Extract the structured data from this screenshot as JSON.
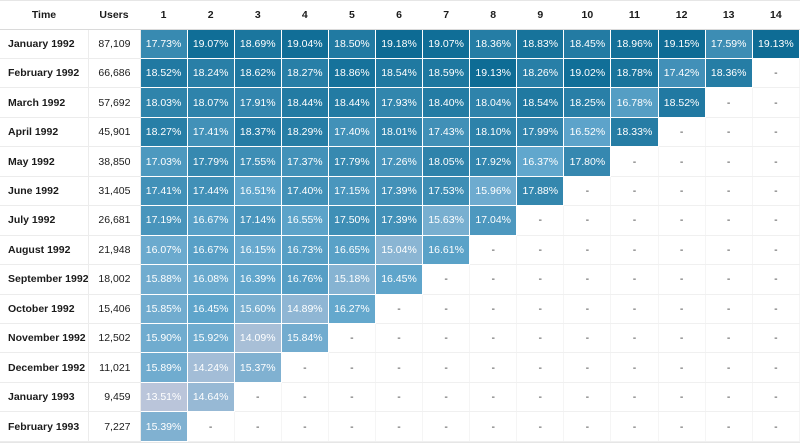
{
  "table": {
    "time_header": "Time",
    "users_header": "Users",
    "period_headers": [
      "1",
      "2",
      "3",
      "4",
      "5",
      "6",
      "7",
      "8",
      "9",
      "10",
      "11",
      "12",
      "13",
      "14"
    ],
    "empty_cell": "-"
  },
  "chart_data": {
    "type": "heatmap",
    "columns": [
      "1",
      "2",
      "3",
      "4",
      "5",
      "6",
      "7",
      "8",
      "9",
      "10",
      "11",
      "12",
      "13",
      "14"
    ],
    "value_format": "percent",
    "legend_position": "none",
    "color_scale": {
      "min": 13.5,
      "max": 19.2,
      "stops": [
        "#bac5da",
        "#62a7cd",
        "#0c6b94"
      ]
    },
    "text_color_on_cells": "#ffffff",
    "rows": [
      {
        "time": "January 1992",
        "users": "87,109",
        "values": [
          17.73,
          19.07,
          18.69,
          19.04,
          18.5,
          19.18,
          19.07,
          18.36,
          18.83,
          18.45,
          18.96,
          19.15,
          17.59,
          19.13
        ]
      },
      {
        "time": "February 1992",
        "users": "66,686",
        "values": [
          18.52,
          18.24,
          18.62,
          18.27,
          18.86,
          18.54,
          18.59,
          19.13,
          18.26,
          19.02,
          18.78,
          17.42,
          18.36,
          null
        ]
      },
      {
        "time": "March 1992",
        "users": "57,692",
        "values": [
          18.03,
          18.07,
          17.91,
          18.44,
          18.44,
          17.93,
          18.4,
          18.04,
          18.54,
          18.25,
          16.78,
          18.52,
          null,
          null
        ]
      },
      {
        "time": "April 1992",
        "users": "45,901",
        "values": [
          18.27,
          17.41,
          18.37,
          18.29,
          17.4,
          18.01,
          17.43,
          18.1,
          17.99,
          16.52,
          18.33,
          null,
          null,
          null
        ]
      },
      {
        "time": "May 1992",
        "users": "38,850",
        "values": [
          17.03,
          17.79,
          17.55,
          17.37,
          17.79,
          17.26,
          18.05,
          17.92,
          16.37,
          17.8,
          null,
          null,
          null,
          null
        ]
      },
      {
        "time": "June 1992",
        "users": "31,405",
        "values": [
          17.41,
          17.44,
          16.51,
          17.4,
          17.15,
          17.39,
          17.53,
          15.96,
          17.88,
          null,
          null,
          null,
          null,
          null
        ]
      },
      {
        "time": "July 1992",
        "users": "26,681",
        "values": [
          17.19,
          16.67,
          17.14,
          16.55,
          17.5,
          17.39,
          15.63,
          17.04,
          null,
          null,
          null,
          null,
          null,
          null
        ]
      },
      {
        "time": "August 1992",
        "users": "21,948",
        "values": [
          16.07,
          16.67,
          16.15,
          16.73,
          16.65,
          15.04,
          16.61,
          null,
          null,
          null,
          null,
          null,
          null,
          null
        ]
      },
      {
        "time": "September 1992",
        "users": "18,002",
        "values": [
          15.88,
          16.08,
          16.39,
          16.76,
          15.18,
          16.45,
          null,
          null,
          null,
          null,
          null,
          null,
          null,
          null
        ]
      },
      {
        "time": "October 1992",
        "users": "15,406",
        "values": [
          15.85,
          16.45,
          15.6,
          14.89,
          16.27,
          null,
          null,
          null,
          null,
          null,
          null,
          null,
          null,
          null
        ]
      },
      {
        "time": "November 1992",
        "users": "12,502",
        "values": [
          15.9,
          15.92,
          14.09,
          15.84,
          null,
          null,
          null,
          null,
          null,
          null,
          null,
          null,
          null,
          null
        ]
      },
      {
        "time": "December 1992",
        "users": "11,021",
        "values": [
          15.89,
          14.24,
          15.37,
          null,
          null,
          null,
          null,
          null,
          null,
          null,
          null,
          null,
          null,
          null
        ]
      },
      {
        "time": "January 1993",
        "users": "9,459",
        "values": [
          13.51,
          14.64,
          null,
          null,
          null,
          null,
          null,
          null,
          null,
          null,
          null,
          null,
          null,
          null
        ]
      },
      {
        "time": "February 1993",
        "users": "7,227",
        "values": [
          15.39,
          null,
          null,
          null,
          null,
          null,
          null,
          null,
          null,
          null,
          null,
          null,
          null,
          null
        ]
      }
    ]
  }
}
